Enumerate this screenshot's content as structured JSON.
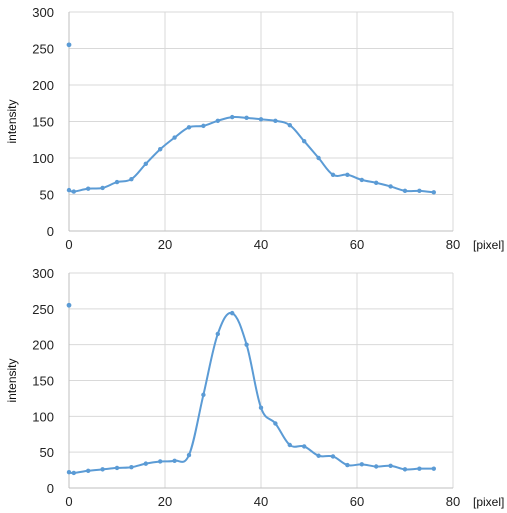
{
  "chart_data": [
    {
      "type": "line",
      "title": "",
      "xlabel": "[pixel]",
      "ylabel": "intensity",
      "xlim": [
        0,
        80
      ],
      "ylim": [
        0,
        300
      ],
      "x_ticks": [
        0,
        20,
        40,
        60,
        80
      ],
      "y_ticks": [
        0,
        50,
        100,
        150,
        200,
        250,
        300
      ],
      "grid": true,
      "color": "#5b9bd5",
      "outlier": {
        "x": 0,
        "y": 255
      },
      "series": [
        {
          "x": [
            0,
            1,
            4,
            7,
            10,
            13,
            16,
            19,
            22,
            25,
            28,
            31,
            34,
            37,
            40,
            43,
            46,
            49,
            52,
            55,
            58,
            61,
            64,
            67,
            70,
            73,
            76
          ],
          "y": [
            56,
            54,
            58,
            59,
            67,
            71,
            92,
            112,
            128,
            142,
            144,
            151,
            156,
            155,
            153,
            151,
            145,
            123,
            100,
            77,
            77,
            70,
            66,
            61,
            55,
            55,
            53
          ]
        }
      ]
    },
    {
      "type": "line",
      "title": "",
      "xlabel": "[pixel]",
      "ylabel": "intensity",
      "xlim": [
        0,
        80
      ],
      "ylim": [
        0,
        300
      ],
      "x_ticks": [
        0,
        20,
        40,
        60,
        80
      ],
      "y_ticks": [
        0,
        50,
        100,
        150,
        200,
        250,
        300
      ],
      "grid": true,
      "color": "#5b9bd5",
      "outlier": {
        "x": 0,
        "y": 255
      },
      "series": [
        {
          "x": [
            0,
            1,
            4,
            7,
            10,
            13,
            16,
            19,
            22,
            25,
            28,
            31,
            34,
            37,
            40,
            43,
            46,
            49,
            52,
            55,
            58,
            61,
            64,
            67,
            70,
            73,
            76
          ],
          "y": [
            22,
            21,
            24,
            26,
            28,
            29,
            34,
            37,
            38,
            46,
            130,
            215,
            244,
            200,
            112,
            90,
            60,
            58,
            45,
            44,
            32,
            33,
            30,
            31,
            26,
            27,
            27
          ]
        }
      ]
    }
  ]
}
